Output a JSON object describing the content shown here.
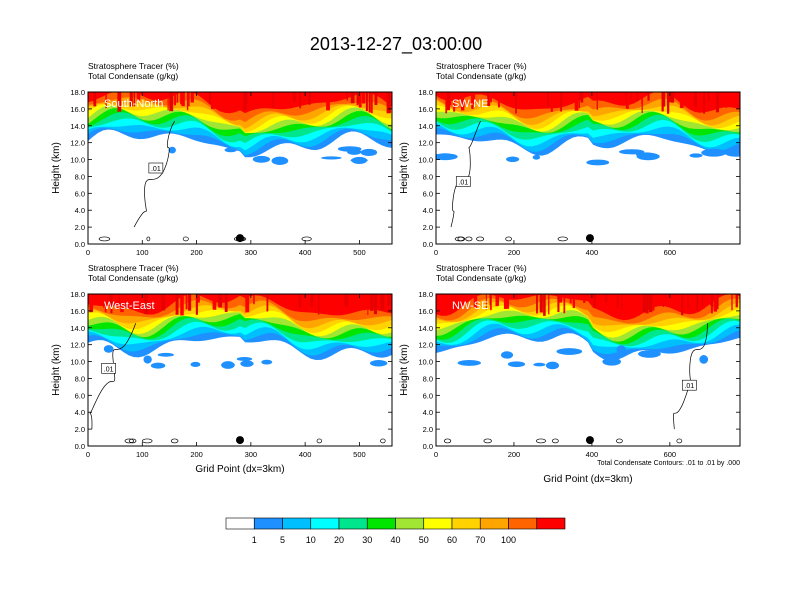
{
  "title": "2013-12-27_03:00:00",
  "chart_data": {
    "type": "heatmap",
    "panels": [
      {
        "id": "south-north",
        "label": "South-North",
        "top_left_lines": [
          "Stratosphere Tracer   (%)",
          "Total Condensate   (g/kg)"
        ],
        "xlim": [
          0,
          560
        ],
        "xticks": [
          0,
          100,
          200,
          300,
          400,
          500
        ],
        "ylim": [
          0,
          18
        ],
        "yticks": [
          0,
          2,
          4,
          6,
          8,
          10,
          12,
          14,
          16,
          18
        ],
        "ylabel": "Height (km)",
        "xlabel": "",
        "marker_x": 280,
        "contour_label": ".01",
        "contour_label_pos": [
          125,
          9
        ]
      },
      {
        "id": "sw-ne",
        "label": "SW-NE",
        "top_left_lines": [
          "Stratosphere Tracer   (%)",
          "Total Condensate   (g/kg)"
        ],
        "xlim": [
          0,
          780
        ],
        "xticks": [
          0,
          200,
          400,
          600
        ],
        "ylim": [
          0,
          18
        ],
        "yticks": [
          0,
          2,
          4,
          6,
          8,
          10,
          12,
          14,
          16,
          18
        ],
        "ylabel": "Height (km)",
        "xlabel": "",
        "marker_x": 395,
        "contour_label": ".01",
        "contour_label_pos": [
          70,
          7.4
        ]
      },
      {
        "id": "west-east",
        "label": "West-East",
        "top_left_lines": [
          "Stratosphere Tracer   (%)",
          "Total Condensate   (g/kg)"
        ],
        "xlim": [
          0,
          560
        ],
        "xticks": [
          0,
          100,
          200,
          300,
          400,
          500
        ],
        "ylim": [
          0,
          18
        ],
        "yticks": [
          0,
          2,
          4,
          6,
          8,
          10,
          12,
          14,
          16,
          18
        ],
        "ylabel": "Height (km)",
        "xlabel": "Grid Point (dx=3km)",
        "marker_x": 280,
        "contour_label": ".01",
        "contour_label_pos": [
          38,
          9.2
        ]
      },
      {
        "id": "nw-se",
        "label": "NW-SE",
        "top_left_lines": [
          "Stratosphere Tracer   (%)",
          "Total Condensate   (g/kg)"
        ],
        "xlim": [
          0,
          780
        ],
        "xticks": [
          0,
          200,
          400,
          600
        ],
        "ylim": [
          0,
          18
        ],
        "yticks": [
          0,
          2,
          4,
          6,
          8,
          10,
          12,
          14,
          16,
          18
        ],
        "ylabel": "Height (km)",
        "xlabel": "Grid Point (dx=3km)",
        "marker_x": 395,
        "contour_label": ".01",
        "contour_label_pos": [
          650,
          7.2
        ],
        "footnote": "Total Condensate Contours: .01 to .01 by .000"
      }
    ],
    "colorbar": {
      "levels": [
        "1",
        "5",
        "10",
        "20",
        "30",
        "40",
        "50",
        "60",
        "70",
        "100"
      ],
      "colors": [
        "#ffffff",
        "#1e90ff",
        "#00bfff",
        "#00ffff",
        "#00e68c",
        "#00e600",
        "#a0e632",
        "#ffff00",
        "#ffd200",
        "#ffa500",
        "#ff6400",
        "#ff0000"
      ]
    }
  }
}
